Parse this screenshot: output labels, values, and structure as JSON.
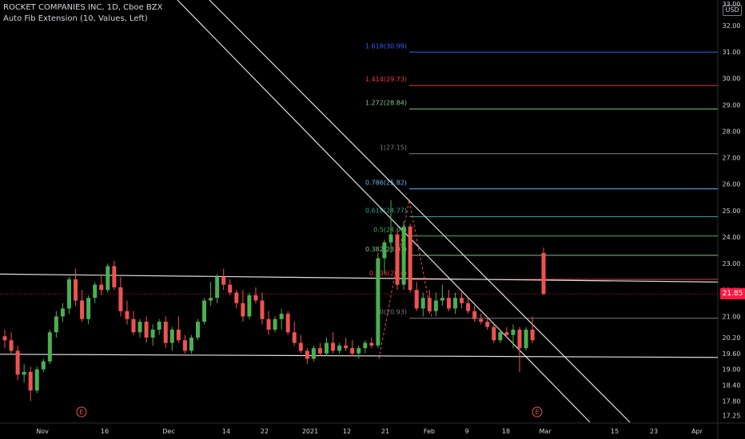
{
  "header": {
    "title": "ROCKET COMPANIES INC, 1D, Cboe BZX",
    "indicator": "Auto Fib Extension (10, Values, Left)"
  },
  "price_axis": {
    "currency": "USD",
    "last_price": "21.85",
    "last_price_color": "#ff1744"
  },
  "colors": {
    "background": "#000000",
    "up": "#26a69a",
    "up_bright": "#4caf50",
    "down": "#ef5350",
    "axis_text": "#d1d4dc",
    "trendline": "#e0e0e0"
  },
  "chart_data": {
    "type": "candlestick",
    "ylim": [
      17.0,
      32.9
    ],
    "y_ticks": [
      17.25,
      17.8,
      18.4,
      19.0,
      19.6,
      20.2,
      21.0,
      22.0,
      23.0,
      24.0,
      25.0,
      26.0,
      27.0,
      28.0,
      29.0,
      30.0,
      31.0,
      32.0
    ],
    "y_tick_labels": [
      "17.25",
      "17.80",
      "18.40",
      "19.00",
      "19.60",
      "20.20",
      "21.00",
      "22.00",
      "23.00",
      "24.00",
      "25.00",
      "26.00",
      "27.00",
      "28.00",
      "29.00",
      "30.00",
      "31.00",
      "32.00"
    ],
    "top_tick_label": "33.00",
    "x_tick_labels": [
      "Nov",
      "16",
      "Dec",
      "14",
      "22",
      "2021",
      "12",
      "21",
      "Feb",
      "9",
      "18",
      "Mar",
      "15",
      "23",
      "Apr"
    ],
    "earnings_markers": [
      "E",
      "E"
    ],
    "candles": [
      [
        20.25,
        20.5,
        19.8,
        20.1
      ],
      [
        20.1,
        20.4,
        19.6,
        19.7
      ],
      [
        19.7,
        19.9,
        18.6,
        18.8
      ],
      [
        18.8,
        19.2,
        18.5,
        18.9
      ],
      [
        18.9,
        19.1,
        17.8,
        18.2
      ],
      [
        18.2,
        19.1,
        18.1,
        19.0
      ],
      [
        19.0,
        19.4,
        18.9,
        19.3
      ],
      [
        19.3,
        20.5,
        19.2,
        20.4
      ],
      [
        20.4,
        21.2,
        20.2,
        21.0
      ],
      [
        21.0,
        21.5,
        20.8,
        21.3
      ],
      [
        21.3,
        22.5,
        21.1,
        22.4
      ],
      [
        22.4,
        22.8,
        21.4,
        21.6
      ],
      [
        21.6,
        22.0,
        20.8,
        20.9
      ],
      [
        20.9,
        21.8,
        20.7,
        21.7
      ],
      [
        21.7,
        22.3,
        21.5,
        22.2
      ],
      [
        22.2,
        22.6,
        21.8,
        22.0
      ],
      [
        22.0,
        23.0,
        21.9,
        22.9
      ],
      [
        22.9,
        23.1,
        22.0,
        22.1
      ],
      [
        22.1,
        22.5,
        21.0,
        21.2
      ],
      [
        21.2,
        21.6,
        20.7,
        20.9
      ],
      [
        20.9,
        21.2,
        20.3,
        20.4
      ],
      [
        20.4,
        20.9,
        20.2,
        20.8
      ],
      [
        20.8,
        21.0,
        20.0,
        20.2
      ],
      [
        20.2,
        20.7,
        19.9,
        20.5
      ],
      [
        20.5,
        20.9,
        20.3,
        20.8
      ],
      [
        20.8,
        21.0,
        19.8,
        20.0
      ],
      [
        20.0,
        20.6,
        19.7,
        20.5
      ],
      [
        20.5,
        21.0,
        20.0,
        20.1
      ],
      [
        20.1,
        20.3,
        19.6,
        19.7
      ],
      [
        19.7,
        20.3,
        19.6,
        20.2
      ],
      [
        20.2,
        20.9,
        20.1,
        20.8
      ],
      [
        20.8,
        21.7,
        20.7,
        21.6
      ],
      [
        21.6,
        22.3,
        21.4,
        21.7
      ],
      [
        21.7,
        22.6,
        21.5,
        22.5
      ],
      [
        22.5,
        22.8,
        22.0,
        22.2
      ],
      [
        22.2,
        22.4,
        21.8,
        21.9
      ],
      [
        21.9,
        22.0,
        21.3,
        21.5
      ],
      [
        21.5,
        22.0,
        20.8,
        21.0
      ],
      [
        21.0,
        21.9,
        20.9,
        21.8
      ],
      [
        21.8,
        22.1,
        21.5,
        21.6
      ],
      [
        21.6,
        21.9,
        20.7,
        20.9
      ],
      [
        20.9,
        21.2,
        20.3,
        20.5
      ],
      [
        20.5,
        21.0,
        20.4,
        20.9
      ],
      [
        20.9,
        21.3,
        20.5,
        21.1
      ],
      [
        21.1,
        21.2,
        20.3,
        20.4
      ],
      [
        20.4,
        20.8,
        19.9,
        20.0
      ],
      [
        20.0,
        20.3,
        19.6,
        19.7
      ],
      [
        19.7,
        19.8,
        19.2,
        19.4
      ],
      [
        19.4,
        19.9,
        19.3,
        19.8
      ],
      [
        19.8,
        20.0,
        19.5,
        19.6
      ],
      [
        19.6,
        20.2,
        19.5,
        20.0
      ],
      [
        20.0,
        20.4,
        19.6,
        19.7
      ],
      [
        19.7,
        20.0,
        19.6,
        19.9
      ],
      [
        19.9,
        20.2,
        19.7,
        19.8
      ],
      [
        19.8,
        20.1,
        19.5,
        19.6
      ],
      [
        19.6,
        19.9,
        19.4,
        19.8
      ],
      [
        19.8,
        20.1,
        19.6,
        20.0
      ],
      [
        20.0,
        20.2,
        19.8,
        19.9
      ],
      [
        19.9,
        23.4,
        19.8,
        23.2
      ],
      [
        23.2,
        23.9,
        22.6,
        23.8
      ],
      [
        23.8,
        25.4,
        23.4,
        24.1
      ],
      [
        24.1,
        24.3,
        22.0,
        22.2
      ],
      [
        22.2,
        24.6,
        22.0,
        24.4
      ],
      [
        24.4,
        24.5,
        21.9,
        22.0
      ],
      [
        22.0,
        22.3,
        21.2,
        21.3
      ],
      [
        21.3,
        21.9,
        21.0,
        21.7
      ],
      [
        21.7,
        22.0,
        21.1,
        21.2
      ],
      [
        21.2,
        21.9,
        21.0,
        21.6
      ],
      [
        21.6,
        22.2,
        21.4,
        21.7
      ],
      [
        21.7,
        22.0,
        21.2,
        21.3
      ],
      [
        21.3,
        21.9,
        21.1,
        21.7
      ],
      [
        21.7,
        21.9,
        21.3,
        21.5
      ],
      [
        21.5,
        21.7,
        21.1,
        21.2
      ],
      [
        21.2,
        21.4,
        20.8,
        20.9
      ],
      [
        20.9,
        21.1,
        20.7,
        20.8
      ],
      [
        20.8,
        21.0,
        20.5,
        20.6
      ],
      [
        20.6,
        20.7,
        20.0,
        20.1
      ],
      [
        20.1,
        20.5,
        20.0,
        20.4
      ],
      [
        20.4,
        20.6,
        20.2,
        20.3
      ],
      [
        20.3,
        20.7,
        19.8,
        20.5
      ],
      [
        20.5,
        20.6,
        18.9,
        19.8
      ],
      [
        19.8,
        20.6,
        19.7,
        20.5
      ],
      [
        20.5,
        21.0,
        20.0,
        20.1
      ],
      [
        23.4,
        23.6,
        21.8,
        21.85
      ]
    ],
    "fib_levels": [
      {
        "label": "1.618(30.99)",
        "value": 30.99,
        "color": "#2962ff"
      },
      {
        "label": "1.414(29.73)",
        "value": 29.73,
        "color": "#f23645"
      },
      {
        "label": "1.272(28.84)",
        "value": 28.84,
        "color": "#81c784"
      },
      {
        "label": "1(27.15)",
        "value": 27.15,
        "color": "#787b86"
      },
      {
        "label": "0.786(25.82)",
        "value": 25.82,
        "color": "#64b5f6"
      },
      {
        "label": "0.618(24.77)",
        "value": 24.77,
        "color": "#26a69a"
      },
      {
        "label": "0.5(24.04)",
        "value": 24.04,
        "color": "#4caf50"
      },
      {
        "label": "0.382(23.31)",
        "value": 23.31,
        "color": "#81c784"
      },
      {
        "label": "0.236(22.4)",
        "value": 22.4,
        "color": "#f23645"
      },
      {
        "label": "0(20.93)",
        "value": 20.93,
        "color": "#787b86"
      }
    ]
  }
}
